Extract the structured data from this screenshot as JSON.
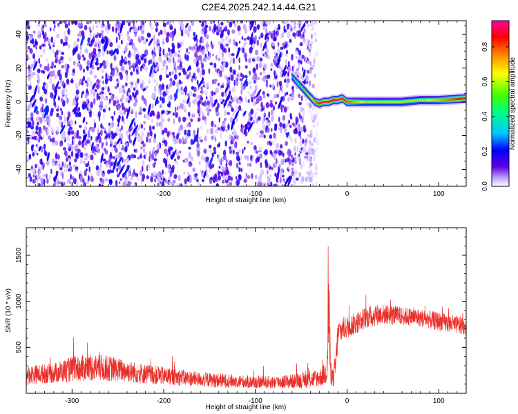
{
  "title": "C2E4.2025.242.14.44.G21",
  "chart_data": [
    {
      "type": "heatmap",
      "xlabel": "Height of straight line (km)",
      "ylabel": "Frequency (Hz)",
      "xlim": [
        -350,
        130
      ],
      "ylim": [
        -50,
        48
      ],
      "xticks": [
        -300,
        -200,
        -100,
        0,
        100
      ],
      "yticks": [
        -40,
        -20,
        0,
        20,
        40
      ],
      "colorbar": {
        "label": "Normalized spectral amplitude",
        "range": [
          0,
          0.95
        ],
        "ticks": [
          0.0,
          0.2,
          0.4,
          0.6,
          0.8
        ],
        "colors": [
          "#ffffff",
          "#c0a0ff",
          "#5a00e0",
          "#0000ff",
          "#00c8ff",
          "#00ff80",
          "#40ff00",
          "#ffff00",
          "#ff8000",
          "#ff0000",
          "#ff00a0"
        ]
      },
      "noise_region": {
        "x_from": -350,
        "x_to": -30,
        "amplitude": "~0.05-0.2"
      },
      "signal_track": {
        "x": [
          -60,
          -55,
          -50,
          -45,
          -40,
          -35,
          -30,
          -25,
          -20,
          -15,
          -10,
          -5,
          0,
          20,
          40,
          60,
          80,
          100,
          130
        ],
        "frequency": [
          15,
          12,
          9,
          6,
          3,
          0,
          -1,
          0,
          0,
          1,
          1,
          2,
          0,
          0,
          0,
          0,
          1,
          1,
          2
        ],
        "peak_amplitude": [
          0.35,
          0.45,
          0.5,
          0.55,
          0.6,
          0.75,
          0.85,
          0.9,
          0.9,
          0.85,
          0.9,
          0.9,
          0.8,
          0.6,
          0.6,
          0.6,
          0.6,
          0.7,
          0.9
        ]
      }
    },
    {
      "type": "line",
      "xlabel": "Height of straight line (km)",
      "ylabel": "SNR (10 * v/v)",
      "xlim": [
        -350,
        130
      ],
      "ylim": [
        0,
        1800
      ],
      "xticks": [
        -300,
        -200,
        -100,
        0,
        100
      ],
      "yticks": [
        500,
        1000,
        1500
      ],
      "color": "#e8302a",
      "series": [
        {
          "x": [
            -350,
            -320,
            -300,
            -280,
            -260,
            -240,
            -220,
            -200,
            -180,
            -160,
            -140,
            -120,
            -100,
            -80,
            -60,
            -40,
            -30,
            -25,
            -22,
            -20,
            -18,
            -15,
            -12,
            -10,
            -5,
            0,
            10,
            20,
            30,
            40,
            50,
            60,
            70,
            80,
            90,
            100,
            110,
            120,
            130
          ],
          "mean": [
            200,
            220,
            260,
            280,
            270,
            240,
            210,
            190,
            170,
            150,
            140,
            130,
            120,
            120,
            130,
            150,
            170,
            200,
            250,
            900,
            250,
            150,
            350,
            650,
            700,
            720,
            760,
            820,
            850,
            860,
            850,
            840,
            830,
            820,
            800,
            780,
            760,
            740,
            730
          ],
          "spread": [
            100,
            110,
            140,
            150,
            140,
            120,
            110,
            100,
            90,
            80,
            80,
            70,
            70,
            70,
            80,
            90,
            100,
            120,
            150,
            700,
            150,
            100,
            200,
            150,
            130,
            120,
            120,
            120,
            120,
            110,
            110,
            100,
            100,
            100,
            100,
            100,
            100,
            100,
            100
          ]
        }
      ]
    }
  ]
}
